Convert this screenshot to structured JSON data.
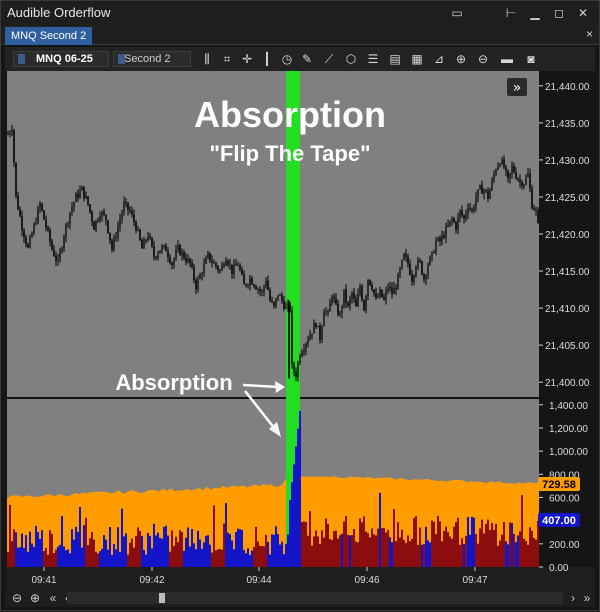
{
  "window": {
    "title": "Audible Orderflow"
  },
  "titlebar_icons": [
    "window-icon",
    "pin-icon",
    "minimize-icon",
    "maximize-icon",
    "close-icon"
  ],
  "tab": {
    "label": "MNQ Second 2",
    "close": "×"
  },
  "toolbar": {
    "instrument": "MNQ 06-25",
    "period": "Second 2",
    "tools": [
      "bar-type-icon",
      "chart-style-icon",
      "crosshair-icon",
      "candles-icon",
      "clock-icon",
      "pencil-icon",
      "trend-icon",
      "cube-icon",
      "list-icon",
      "report-icon",
      "grid-icon",
      "properties-icon",
      "zoom-in-icon",
      "zoom-out-icon",
      "folder-icon",
      "camera-icon"
    ]
  },
  "annotations": {
    "headline": "Absorption",
    "subhead": "\"Flip The Tape\"",
    "callout": "Absorption",
    "expand": "»"
  },
  "colors": {
    "panel_bg": "#808080",
    "axis_bg": "#151515",
    "candle": "#000000",
    "highlight": "#22dd22",
    "avg_fill": "#ff9d00",
    "buy_volume": "#1414c8",
    "sell_volume": "#8b0d0d",
    "avg_label": "#ff9d00",
    "vol_label": "#1414c8"
  },
  "chart_data": [
    {
      "type": "candlestick",
      "y_ticks": [
        "21,440.00",
        "21,435.00",
        "21,430.00",
        "21,425.00",
        "21,420.00",
        "21,415.00",
        "21,410.00",
        "21,405.00",
        "21,400.00"
      ],
      "ylim": [
        21398,
        21442
      ],
      "x_ticks": [
        "09:41",
        "09:42",
        "09:44",
        "09:46",
        "09:47"
      ],
      "close_path_points": [
        [
          0,
          21433.5
        ],
        [
          4,
          21434.5
        ],
        [
          8,
          21425
        ],
        [
          14,
          21421
        ],
        [
          20,
          21418
        ],
        [
          26,
          21421
        ],
        [
          32,
          21424
        ],
        [
          38,
          21421
        ],
        [
          44,
          21418
        ],
        [
          50,
          21416
        ],
        [
          56,
          21420
        ],
        [
          62,
          21423
        ],
        [
          68,
          21425
        ],
        [
          74,
          21426
        ],
        [
          80,
          21424
        ],
        [
          86,
          21421
        ],
        [
          92,
          21423
        ],
        [
          98,
          21422
        ],
        [
          104,
          21418
        ],
        [
          110,
          21421
        ],
        [
          116,
          21424
        ],
        [
          122,
          21423
        ],
        [
          128,
          21421
        ],
        [
          134,
          21418
        ],
        [
          140,
          21420
        ],
        [
          146,
          21417
        ],
        [
          152,
          21418
        ],
        [
          158,
          21418
        ],
        [
          164,
          21416
        ],
        [
          170,
          21418
        ],
        [
          176,
          21417
        ],
        [
          182,
          21416
        ],
        [
          188,
          21413
        ],
        [
          194,
          21415
        ],
        [
          200,
          21417
        ],
        [
          206,
          21416
        ],
        [
          212,
          21415
        ],
        [
          218,
          21417
        ],
        [
          224,
          21415
        ],
        [
          230,
          21416
        ],
        [
          236,
          21413
        ],
        [
          242,
          21414
        ],
        [
          248,
          21413
        ],
        [
          254,
          21412
        ],
        [
          258,
          21414
        ],
        [
          262,
          21411
        ],
        [
          266,
          21410
        ],
        [
          270,
          21412
        ],
        [
          274,
          21411
        ],
        [
          278,
          21410
        ],
        [
          282,
          21410
        ],
        [
          284,
          21402
        ],
        [
          288,
          21401
        ],
        [
          292,
          21404
        ],
        [
          296,
          21405
        ],
        [
          300,
          21406
        ],
        [
          304,
          21407
        ],
        [
          308,
          21408
        ],
        [
          312,
          21406
        ],
        [
          316,
          21410
        ],
        [
          320,
          21409
        ],
        [
          324,
          21412
        ],
        [
          328,
          21410
        ],
        [
          332,
          21409
        ],
        [
          336,
          21412
        ],
        [
          340,
          21410
        ],
        [
          344,
          21412
        ],
        [
          348,
          21410
        ],
        [
          352,
          21413
        ],
        [
          356,
          21410
        ],
        [
          360,
          21414
        ],
        [
          364,
          21413
        ],
        [
          368,
          21411
        ],
        [
          372,
          21412
        ],
        [
          376,
          21411
        ],
        [
          380,
          21413
        ],
        [
          384,
          21412
        ],
        [
          388,
          21413
        ],
        [
          392,
          21415
        ],
        [
          396,
          21417
        ],
        [
          400,
          21416
        ],
        [
          404,
          21414
        ],
        [
          408,
          21416
        ],
        [
          412,
          21416
        ],
        [
          416,
          21414
        ],
        [
          420,
          21416
        ],
        [
          424,
          21417
        ],
        [
          428,
          21419
        ],
        [
          432,
          21419
        ],
        [
          436,
          21420
        ],
        [
          440,
          21421
        ],
        [
          444,
          21422
        ],
        [
          448,
          21421
        ],
        [
          452,
          21423
        ],
        [
          456,
          21422
        ],
        [
          460,
          21424
        ],
        [
          464,
          21423
        ],
        [
          468,
          21425
        ],
        [
          472,
          21426
        ],
        [
          476,
          21426
        ],
        [
          480,
          21425
        ],
        [
          484,
          21427
        ],
        [
          488,
          21429
        ],
        [
          492,
          21430
        ],
        [
          496,
          21429
        ],
        [
          500,
          21427
        ],
        [
          504,
          21429
        ],
        [
          508,
          21428
        ],
        [
          512,
          21427
        ],
        [
          516,
          21427
        ],
        [
          520,
          21428
        ],
        [
          524,
          21424
        ],
        [
          528,
          21423
        ],
        [
          532,
          21419
        ]
      ],
      "highlight_bar_index_position": 292
    },
    {
      "type": "bar",
      "y_ticks": [
        "1,400.00",
        "1,200.00",
        "1,000.00",
        "800.00",
        "600.00",
        "400.00",
        "200.00",
        "0.00"
      ],
      "ylim": [
        0,
        1450
      ],
      "avg_label": "729.58",
      "volume_label": "407.00",
      "buy_volume_peak": 1350,
      "avg_level_range": [
        600,
        780
      ]
    }
  ]
}
